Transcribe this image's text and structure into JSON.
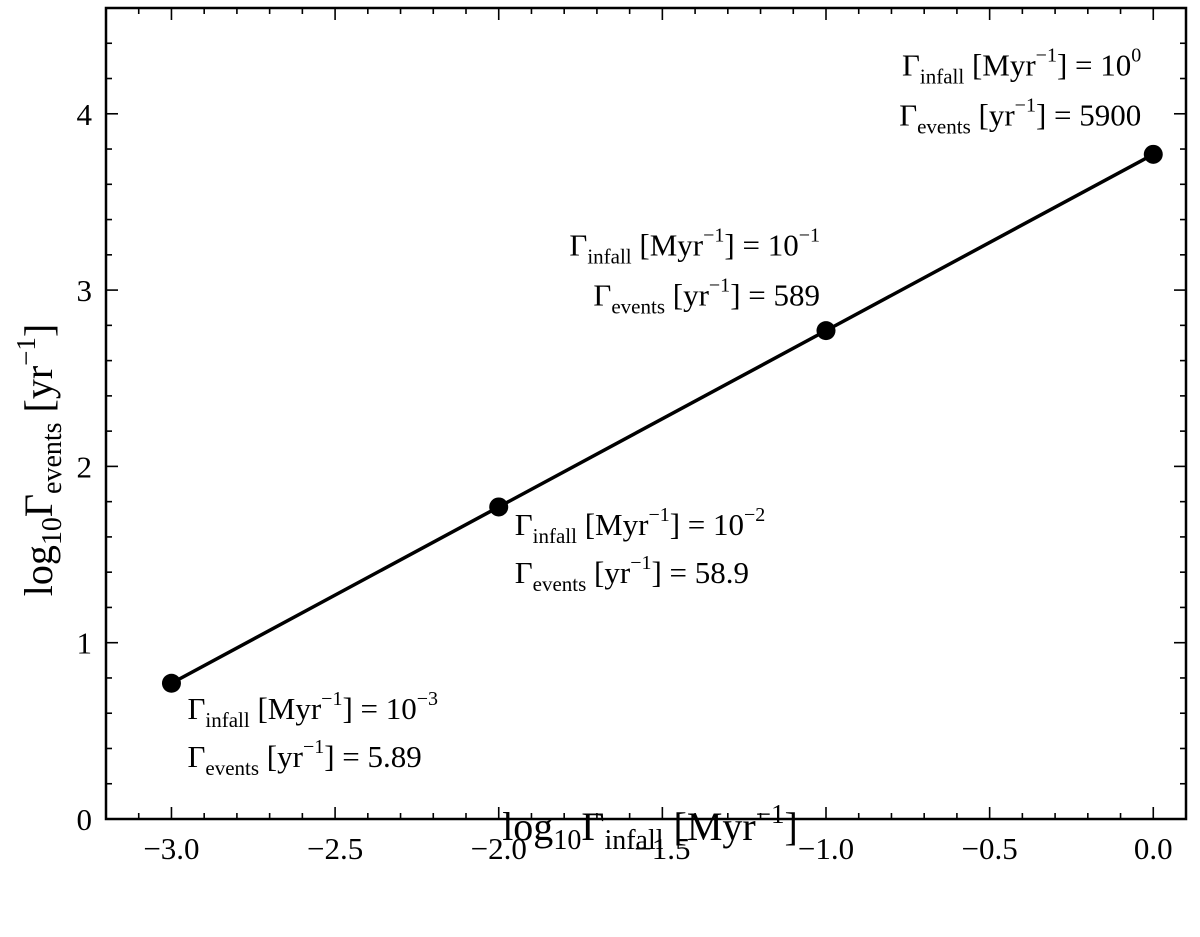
{
  "chart_data": {
    "type": "line",
    "title": "",
    "xlabel": {
      "base": "log",
      "base_sub": "10",
      "sym": "Γ",
      "sym_sub": "infall",
      "unit_pre": " [Myr",
      "unit_sup": "−1",
      "unit_post": "]"
    },
    "ylabel": {
      "base": "log",
      "base_sub": "10",
      "sym": "Γ",
      "sym_sub": "events",
      "unit_pre": " [yr",
      "unit_sup": "−1",
      "unit_post": "]"
    },
    "xlim": [
      -3.2,
      0.1
    ],
    "ylim": [
      0,
      4.6
    ],
    "x_ticks": [
      -3.0,
      -2.5,
      -2.0,
      -1.5,
      -1.0,
      -0.5,
      0.0
    ],
    "x_tick_labels": [
      "−3.0",
      "−2.5",
      "−2.0",
      "−1.5",
      "−1.0",
      "−0.5",
      "0.0"
    ],
    "y_ticks": [
      0,
      1,
      2,
      3,
      4
    ],
    "y_tick_labels": [
      "0",
      "1",
      "2",
      "3",
      "4"
    ],
    "grid": false,
    "series": [
      {
        "x": [
          -3,
          -2,
          -1,
          0
        ],
        "y": [
          0.77,
          1.77,
          2.77,
          3.77
        ],
        "color": "#000000",
        "marker": "circle"
      }
    ],
    "annotations": [
      {
        "line1": {
          "sym": "Γ",
          "sub": "infall",
          "pre": " [Myr",
          "sup": "−1",
          "post": "] = 10",
          "exp": "−3"
        },
        "line2": {
          "sym": "Γ",
          "sub": "events",
          "pre": " [yr",
          "sup": "−1",
          "post": "] = 5.89"
        }
      },
      {
        "line1": {
          "sym": "Γ",
          "sub": "infall",
          "pre": " [Myr",
          "sup": "−1",
          "post": "] = 10",
          "exp": "−2"
        },
        "line2": {
          "sym": "Γ",
          "sub": "events",
          "pre": " [yr",
          "sup": "−1",
          "post": "] = 58.9"
        }
      },
      {
        "line1": {
          "sym": "Γ",
          "sub": "infall",
          "pre": " [Myr",
          "sup": "−1",
          "post": "] = 10",
          "exp": "−1"
        },
        "line2": {
          "sym": "Γ",
          "sub": "events",
          "pre": " [yr",
          "sup": "−1",
          "post": "] = 589"
        }
      },
      {
        "line1": {
          "sym": "Γ",
          "sub": "infall",
          "pre": " [Myr",
          "sup": "−1",
          "post": "] = 10",
          "exp": "0"
        },
        "line2": {
          "sym": "Γ",
          "sub": "events",
          "pre": " [yr",
          "sup": "−1",
          "post": "] = 5900"
        }
      }
    ]
  }
}
